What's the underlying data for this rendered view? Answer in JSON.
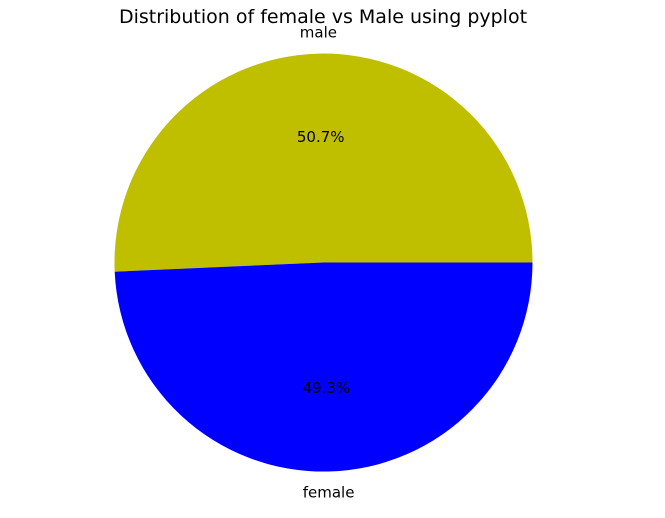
{
  "chart_data": {
    "type": "pie",
    "title": "Distribution of female vs Male using pyplot",
    "slices": [
      {
        "label": "male",
        "value": 50.7,
        "pct_label": "50.7%",
        "color": "#bfbf00"
      },
      {
        "label": "female",
        "value": 49.3,
        "pct_label": "49.3%",
        "color": "#0000ff"
      }
    ],
    "start_angle_deg": 0,
    "direction": "counterclockwise",
    "legend": "none",
    "grid": false
  }
}
